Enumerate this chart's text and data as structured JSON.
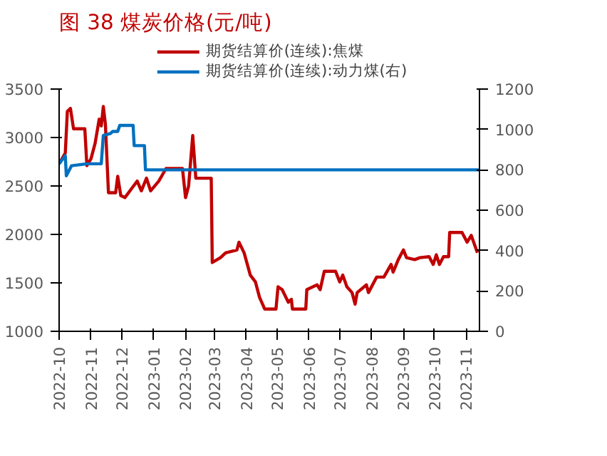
{
  "chart_data": {
    "type": "line",
    "title": "图 38 煤炭价格(元/吨)",
    "xlim": [
      "2022-10-01",
      "2023-11-14"
    ],
    "xticks": [
      "2022-10",
      "2022-11",
      "2022-12",
      "2023-01",
      "2023-02",
      "2023-03",
      "2023-04",
      "2023-05",
      "2023-06",
      "2023-07",
      "2023-08",
      "2023-09",
      "2023-10",
      "2023-11"
    ],
    "ylim": [
      1000,
      3500
    ],
    "yticks": [
      1000,
      1500,
      2000,
      2500,
      3000,
      3500
    ],
    "y2lim": [
      0,
      1200
    ],
    "y2ticks": [
      0,
      200,
      400,
      600,
      800,
      1000,
      1200
    ],
    "grid": false,
    "legend": "top",
    "line_style": "solid",
    "marker": "none",
    "series": [
      {
        "name": "期货结算价(连续):焦煤",
        "color": "#c00000",
        "x": [
          "2022-10-01",
          "2022-10-07",
          "2022-10-09",
          "2022-10-12",
          "2022-10-15",
          "2022-10-26",
          "2022-10-28",
          "2022-11-01",
          "2022-11-05",
          "2022-11-09",
          "2022-11-11",
          "2022-11-13",
          "2022-11-15",
          "2022-11-18",
          "2022-11-25",
          "2022-11-27",
          "2022-11-30",
          "2022-12-04",
          "2022-12-11",
          "2022-12-16",
          "2022-12-20",
          "2022-12-25",
          "2022-12-29",
          "2023-01-06",
          "2023-01-13",
          "2023-01-29",
          "2023-02-01",
          "2023-02-04",
          "2023-02-08",
          "2023-02-11",
          "2023-02-26",
          "2023-02-27",
          "2023-03-07",
          "2023-03-12",
          "2023-03-23",
          "2023-03-25",
          "2023-03-30",
          "2023-04-05",
          "2023-04-10",
          "2023-04-14",
          "2023-04-19",
          "2023-04-30",
          "2023-05-02",
          "2023-05-06",
          "2023-05-12",
          "2023-05-15",
          "2023-05-16",
          "2023-05-29",
          "2023-05-30",
          "2023-06-09",
          "2023-06-12",
          "2023-06-16",
          "2023-06-27",
          "2023-07-01",
          "2023-07-04",
          "2023-07-08",
          "2023-07-13",
          "2023-07-16",
          "2023-07-18",
          "2023-07-27",
          "2023-07-29",
          "2023-08-06",
          "2023-08-13",
          "2023-08-20",
          "2023-08-22",
          "2023-08-27",
          "2023-09-01",
          "2023-09-04",
          "2023-09-12",
          "2023-09-17",
          "2023-09-26",
          "2023-09-30",
          "2023-10-03",
          "2023-10-06",
          "2023-10-10",
          "2023-10-15",
          "2023-10-16",
          "2023-10-28",
          "2023-11-02",
          "2023-11-06",
          "2023-11-12"
        ],
        "values": [
          2730,
          2840,
          3270,
          3300,
          3090,
          3090,
          2710,
          2780,
          2940,
          3190,
          3120,
          3320,
          3140,
          2430,
          2430,
          2600,
          2400,
          2380,
          2480,
          2550,
          2450,
          2580,
          2450,
          2550,
          2680,
          2680,
          2380,
          2500,
          3020,
          2580,
          2580,
          1710,
          1760,
          1810,
          1840,
          1920,
          1810,
          1580,
          1510,
          1350,
          1230,
          1230,
          1460,
          1430,
          1300,
          1330,
          1230,
          1230,
          1430,
          1480,
          1430,
          1620,
          1620,
          1510,
          1580,
          1460,
          1400,
          1280,
          1400,
          1480,
          1400,
          1560,
          1560,
          1690,
          1610,
          1740,
          1840,
          1760,
          1740,
          1760,
          1770,
          1690,
          1790,
          1690,
          1770,
          1770,
          2020,
          2020,
          1920,
          1990,
          1810
        ]
      },
      {
        "name": "期货结算价(连续):动力煤(右)",
        "color": "#0070c0",
        "axis": "y2",
        "x": [
          "2022-10-01",
          "2022-10-07",
          "2022-10-08",
          "2022-10-13",
          "2022-10-28",
          "2022-11-11",
          "2022-11-13",
          "2022-11-20",
          "2022-11-22",
          "2022-11-27",
          "2022-11-29",
          "2022-12-12",
          "2022-12-13",
          "2022-12-23",
          "2022-12-24",
          "2023-11-14"
        ],
        "values": [
          830,
          870,
          770,
          820,
          830,
          830,
          970,
          980,
          990,
          990,
          1020,
          1020,
          920,
          920,
          800,
          800
        ]
      }
    ]
  }
}
